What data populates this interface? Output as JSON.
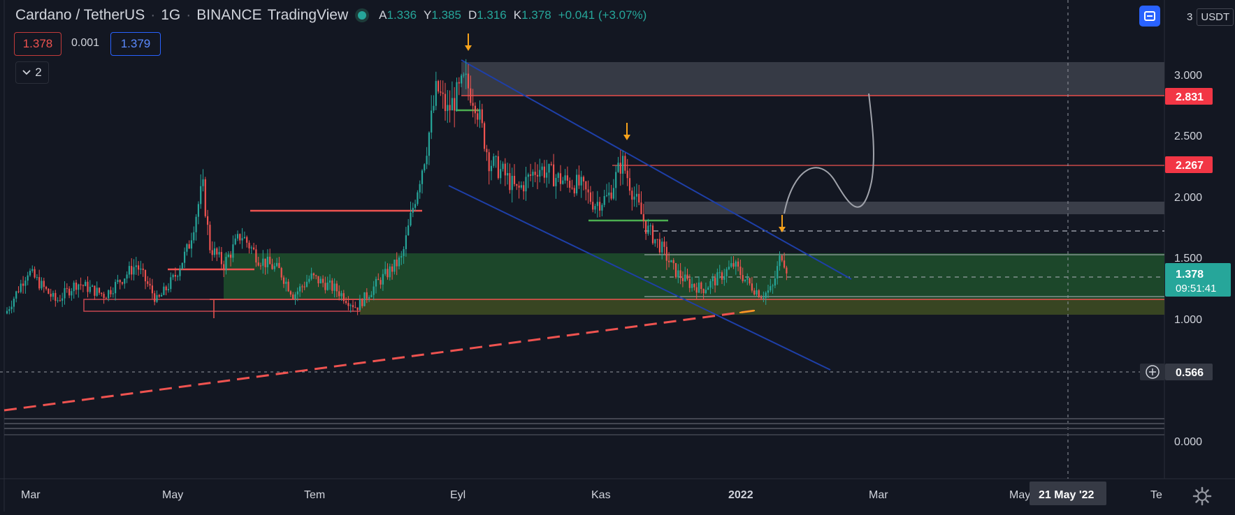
{
  "header": {
    "symbol": "Cardano / TetherUS",
    "interval": "1G",
    "exchange": "BINANCE",
    "platform": "TradingView",
    "ohlc": {
      "open_label": "A",
      "open": "1.336",
      "high_label": "Y",
      "high": "1.385",
      "low_label": "D",
      "low": "1.316",
      "close_label": "K",
      "close": "1.378",
      "change": "+0.041 (+3.07%)"
    }
  },
  "trade": {
    "sell": "1.378",
    "spread": "0.001",
    "buy": "1.379"
  },
  "indicators_collapsed": {
    "count": "2"
  },
  "top_right": {
    "scale_mode": "3",
    "currency": "USDT"
  },
  "price_axis": {
    "ticks": [
      "3.000",
      "2.500",
      "2.000",
      "1.500",
      "1.000",
      "0.000"
    ],
    "labels": [
      {
        "value": "2.831",
        "kind": "red"
      },
      {
        "value": "2.267",
        "kind": "red"
      },
      {
        "value": "1.378",
        "time": "09:51:41",
        "kind": "last"
      },
      {
        "value": "0.566",
        "kind": "crosshair"
      }
    ]
  },
  "time_axis": {
    "ticks": [
      "Mar",
      "May",
      "Tem",
      "Eyl",
      "Kas",
      "2022",
      "Mar",
      "May",
      "Te"
    ],
    "crosshair_label": "21 May '22"
  },
  "colors": {
    "background": "#131722",
    "up": "#26a69a",
    "down": "#ef5350",
    "channel": "#1e3fa8",
    "accent": "#2962ff",
    "arrow": "#f7a21b"
  },
  "chart_data": {
    "type": "candlestick",
    "ylim": [
      -0.25,
      3.4
    ],
    "annotations": {
      "resistance_levels": [
        2.831,
        2.267
      ],
      "crosshair_price": 0.566,
      "last_price": 1.378
    }
  }
}
